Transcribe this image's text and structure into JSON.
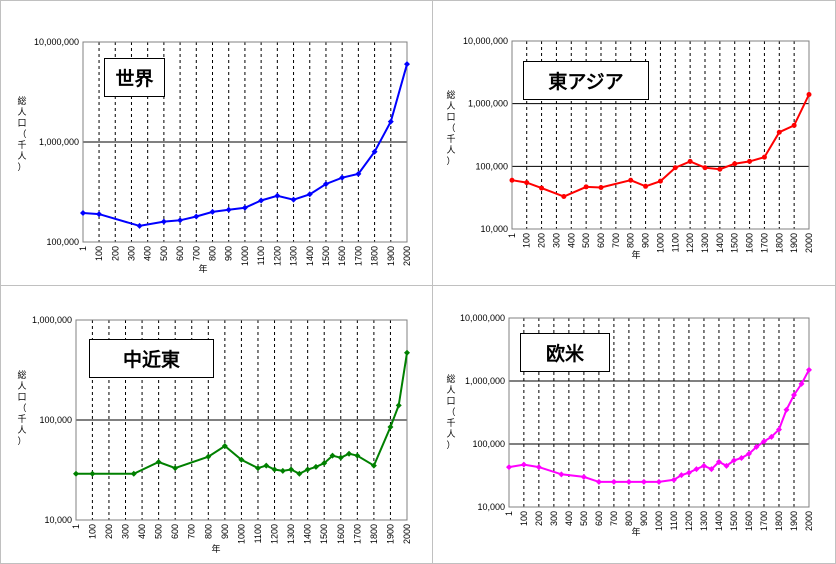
{
  "colors": {
    "frame": "#000000",
    "grid": "#000000",
    "border": "#c0c0c0"
  },
  "chart_data": [
    {
      "type": "line",
      "title": "世界",
      "ylabel": "総人口（千人）",
      "xlabel": "年",
      "yscale": "log",
      "ylim": [
        100000,
        10000000
      ],
      "yticks": [
        100000,
        1000000,
        10000000
      ],
      "ytick_labels": [
        "100,000",
        "1,000,000",
        "10,000,000"
      ],
      "xticks": [
        1,
        100,
        200,
        300,
        400,
        500,
        600,
        700,
        800,
        900,
        1000,
        1100,
        1200,
        1300,
        1400,
        1500,
        1600,
        1700,
        1800,
        1900,
        2000
      ],
      "xlim": [
        1,
        2000
      ],
      "color": "#0000ff",
      "x": [
        1,
        100,
        350,
        500,
        600,
        700,
        800,
        900,
        1000,
        1100,
        1200,
        1300,
        1400,
        1500,
        1600,
        1700,
        1800,
        1900,
        2000
      ],
      "y": [
        195000,
        190000,
        145000,
        160000,
        165000,
        180000,
        200000,
        210000,
        220000,
        260000,
        290000,
        265000,
        300000,
        380000,
        440000,
        480000,
        800000,
        1600000,
        6000000
      ]
    },
    {
      "type": "line",
      "title": "東アジア",
      "ylabel": "総人口（千人）",
      "xlabel": "年",
      "yscale": "log",
      "ylim": [
        10000,
        10000000
      ],
      "yticks": [
        10000,
        100000,
        1000000,
        10000000
      ],
      "ytick_labels": [
        "10,000",
        "100,000",
        "1,000,000",
        "10,000,000"
      ],
      "xticks": [
        1,
        100,
        200,
        300,
        400,
        500,
        600,
        700,
        800,
        900,
        1000,
        1100,
        1200,
        1300,
        1400,
        1500,
        1600,
        1700,
        1800,
        1900,
        2000
      ],
      "xlim": [
        1,
        2000
      ],
      "color": "#ff0000",
      "x": [
        1,
        100,
        200,
        350,
        500,
        600,
        800,
        900,
        1000,
        1100,
        1200,
        1300,
        1400,
        1500,
        1600,
        1700,
        1800,
        1900,
        2000
      ],
      "y": [
        60000,
        55000,
        45000,
        33000,
        47000,
        46000,
        60000,
        48000,
        58000,
        95000,
        120000,
        95000,
        90000,
        110000,
        120000,
        140000,
        350000,
        450000,
        1400000
      ]
    },
    {
      "type": "line",
      "title": "中近東",
      "ylabel": "総人口（千人）",
      "xlabel": "年",
      "yscale": "log",
      "ylim": [
        10000,
        1000000
      ],
      "yticks": [
        10000,
        100000,
        1000000
      ],
      "ytick_labels": [
        "10,000",
        "100,000",
        "1,000,000"
      ],
      "xticks": [
        1,
        100,
        200,
        300,
        400,
        500,
        600,
        700,
        800,
        900,
        1000,
        1100,
        1200,
        1300,
        1400,
        1500,
        1600,
        1700,
        1800,
        1900,
        2000
      ],
      "xlim": [
        1,
        2000
      ],
      "color": "#008000",
      "x": [
        1,
        100,
        350,
        500,
        600,
        800,
        900,
        1000,
        1100,
        1150,
        1200,
        1250,
        1300,
        1350,
        1400,
        1450,
        1500,
        1550,
        1600,
        1650,
        1700,
        1800,
        1900,
        1950,
        2000
      ],
      "y": [
        29000,
        29000,
        29000,
        38000,
        33000,
        43000,
        55000,
        40000,
        33000,
        35000,
        32000,
        31000,
        32000,
        29000,
        32000,
        34000,
        37000,
        44000,
        42000,
        46000,
        44000,
        35000,
        85000,
        140000,
        470000
      ]
    },
    {
      "type": "line",
      "title": "欧米",
      "ylabel": "総人口（千人）",
      "xlabel": "年",
      "yscale": "log",
      "ylim": [
        10000,
        10000000
      ],
      "yticks": [
        10000,
        100000,
        1000000,
        10000000
      ],
      "ytick_labels": [
        "10,000",
        "100,000",
        "1,000,000",
        "10,000,000"
      ],
      "xticks": [
        1,
        100,
        200,
        300,
        400,
        500,
        600,
        700,
        800,
        900,
        1000,
        1100,
        1200,
        1300,
        1400,
        1500,
        1600,
        1700,
        1800,
        1900,
        2000
      ],
      "xlim": [
        1,
        2000
      ],
      "color": "#ff00ff",
      "x": [
        1,
        100,
        200,
        350,
        500,
        600,
        700,
        800,
        900,
        1000,
        1100,
        1150,
        1200,
        1250,
        1300,
        1350,
        1400,
        1450,
        1500,
        1550,
        1600,
        1650,
        1700,
        1750,
        1800,
        1850,
        1900,
        1950,
        2000
      ],
      "y": [
        43000,
        47000,
        43000,
        33000,
        30000,
        25000,
        25000,
        25000,
        25000,
        25000,
        27000,
        32000,
        35000,
        40000,
        45000,
        40000,
        52000,
        45000,
        55000,
        60000,
        70000,
        90000,
        110000,
        130000,
        170000,
        350000,
        600000,
        900000,
        1500000
      ]
    }
  ]
}
